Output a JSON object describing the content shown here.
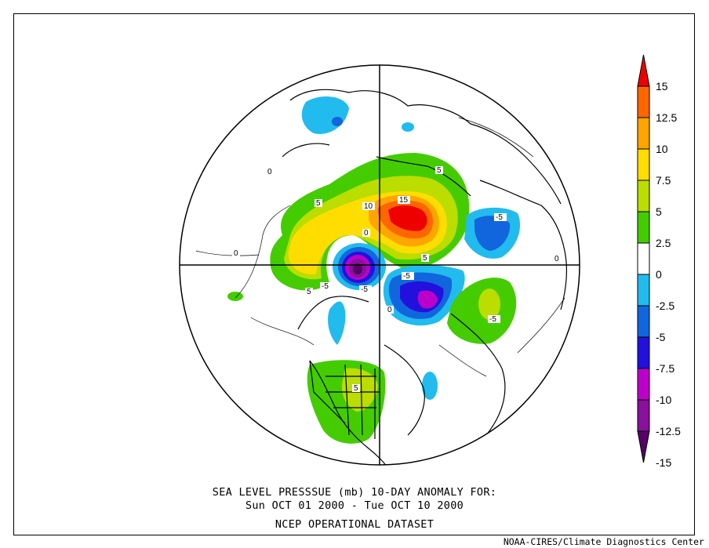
{
  "caption": {
    "line1": "SEA LEVEL PRESSSUE (mb)   10-DAY ANOMALY FOR:",
    "line2": "Sun OCT 01 2000 - Tue OCT 10 2000",
    "line3": "NCEP OPERATIONAL DATASET"
  },
  "credit": "NOAA-CIRES/Climate Diagnostics Center",
  "colorbar": {
    "labels": [
      "15",
      "12.5",
      "10",
      "7.5",
      "5",
      "2.5",
      "0",
      "-2.5",
      "-5",
      "-7.5",
      "-10",
      "-12.5",
      "-15"
    ],
    "colors": [
      "#ee0000",
      "#ff6600",
      "#ffa500",
      "#ffdd00",
      "#bbdd00",
      "#44cc00",
      "#ffffff",
      "#22bbee",
      "#1166dd",
      "#2211dd",
      "#bb00cc",
      "#881199",
      "#550066"
    ]
  },
  "contour_labels": [
    "15",
    "10",
    "5",
    "5",
    "5",
    "0",
    "0",
    "0",
    "0",
    "0",
    "-5",
    "-5",
    "-5",
    "-5",
    "-5",
    "5",
    "5"
  ],
  "anomaly_fields": [
    {
      "name": "siberia-high",
      "sign": "positive",
      "peak_mb": 17.5
    },
    {
      "name": "pole-low",
      "sign": "negative",
      "peak_mb": -17.5
    },
    {
      "name": "greenland-low",
      "sign": "negative",
      "peak_mb": -12.5
    },
    {
      "name": "europe-low",
      "sign": "negative",
      "peak_mb": -7.5
    },
    {
      "name": "pacific-high",
      "sign": "positive",
      "peak_mb": 10
    },
    {
      "name": "atlantic-high",
      "sign": "positive",
      "peak_mb": 7.5
    },
    {
      "name": "north-america-high",
      "sign": "positive",
      "peak_mb": 7.5
    },
    {
      "name": "arctic-positive-band",
      "sign": "positive",
      "peak_mb": 10
    },
    {
      "name": "alaska-low",
      "sign": "negative",
      "peak_mb": -5
    },
    {
      "name": "pacific-low",
      "sign": "negative",
      "peak_mb": -5
    },
    {
      "name": "atlantic-low",
      "sign": "negative",
      "peak_mb": -2.5
    }
  ]
}
